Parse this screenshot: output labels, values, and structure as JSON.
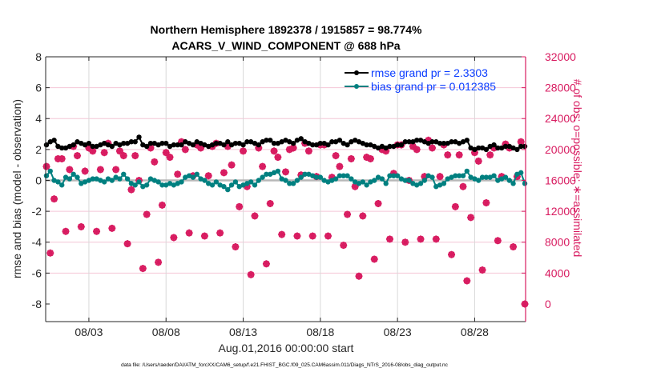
{
  "chart_data": {
    "type": "line",
    "title": [
      "Northern Hemisphere 1892378 / 1915857 = 98.774%",
      "ACARS_V_WIND_COMPONENT @ 688 hPa"
    ],
    "xlabel": "Aug.01,2016 00:00:00 start",
    "ylabel_left": "rmse and bias (model - observation)",
    "ylabel_right": "# of obs: o=possible; ∗=assimilated",
    "footnote": "data file: /Users/raeder/DAI/ATM_forcXX/CAM6_setup/f.e21.FHIST_BGC.f09_025.CAM6assim.011/Diags_NTrS_2016-08/obs_diag_output.nc",
    "x_units": "days since Aug.01,2016 00:00:00",
    "xlim": [
      -0.8,
      30.3
    ],
    "x_start": -0.75,
    "x_step": 0.25,
    "xticks": [
      {
        "value": 2,
        "label": "08/03"
      },
      {
        "value": 7,
        "label": "08/08"
      },
      {
        "value": 12,
        "label": "08/13"
      },
      {
        "value": 17,
        "label": "08/18"
      },
      {
        "value": 22,
        "label": "08/23"
      },
      {
        "value": 27,
        "label": "08/28"
      }
    ],
    "ylim_left": [
      -9.14,
      8
    ],
    "yticks_left": [
      {
        "value": 8,
        "label": "8"
      },
      {
        "value": 6,
        "label": "6"
      },
      {
        "value": 4,
        "label": "4"
      },
      {
        "value": 2,
        "label": "2"
      },
      {
        "value": 0,
        "label": "0"
      },
      {
        "value": -2,
        "label": "-2"
      },
      {
        "value": -4,
        "label": "-4"
      },
      {
        "value": -6,
        "label": "-6"
      },
      {
        "value": -8,
        "label": "-8"
      }
    ],
    "ylim_right": [
      -2280,
      32000
    ],
    "yticks_right": [
      {
        "value": 32000,
        "label": "32000"
      },
      {
        "value": 28000,
        "label": "28000"
      },
      {
        "value": 24000,
        "label": "24000"
      },
      {
        "value": 20000,
        "label": "20000"
      },
      {
        "value": 16000,
        "label": "16000"
      },
      {
        "value": 12000,
        "label": "12000"
      },
      {
        "value": 8000,
        "label": "8000"
      },
      {
        "value": 4000,
        "label": "4000"
      },
      {
        "value": 0,
        "label": "0"
      }
    ],
    "grid": true,
    "legend_position": "top-right",
    "colors": {
      "rmse": "#000000",
      "bias": "#008080",
      "obs": "#d81b60",
      "legend_text": "#0a3cff",
      "grid": "#d9d9d9",
      "right_grid": "#f4c6d6"
    },
    "series": [
      {
        "name": "rmse grand pr = 2.3303",
        "axis": "left",
        "values": [
          2.3,
          2.5,
          2.6,
          2.2,
          2.1,
          2.1,
          2.2,
          2.3,
          2.5,
          2.4,
          2.3,
          2.4,
          2.2,
          2.2,
          2.3,
          2.4,
          2.3,
          2.2,
          2.4,
          2.3,
          2.4,
          2.4,
          2.5,
          2.5,
          2.8,
          2.3,
          2.2,
          2.4,
          2.4,
          2.3,
          2.4,
          2.4,
          2.2,
          2.3,
          2.3,
          2.3,
          2.5,
          2.4,
          2.3,
          2.5,
          2.4,
          2.3,
          2.2,
          2.3,
          2.4,
          2.4,
          2.3,
          2.5,
          2.3,
          2.4,
          2.4,
          2.3,
          2.5,
          2.5,
          2.4,
          2.3,
          2.5,
          2.6,
          2.6,
          2.4,
          2.4,
          2.5,
          2.6,
          2.5,
          2.4,
          2.6,
          2.7,
          2.5,
          2.4,
          2.3,
          2.3,
          2.4,
          2.4,
          2.3,
          2.5,
          2.5,
          2.6,
          2.4,
          2.3,
          2.5,
          2.6,
          2.5,
          2.4,
          2.3,
          2.3,
          2.2,
          2.1,
          2.2,
          2.1,
          2.2,
          2.2,
          2.3,
          2.3,
          2.5,
          2.5,
          2.5,
          2.6,
          2.6,
          2.5,
          2.4,
          2.5,
          2.5,
          2.4,
          2.4,
          2.4,
          2.5,
          2.5,
          2.4,
          2.5,
          2.6,
          2.1,
          2.0,
          2.1,
          2.1,
          2.0,
          2.2,
          2.3,
          2.1,
          2.1,
          2.2,
          2.2,
          2.1,
          2.0,
          2.2,
          2.2
        ]
      },
      {
        "name": "bias grand pr = 0.012385",
        "axis": "left",
        "values": [
          0.3,
          0.6,
          0.0,
          -0.1,
          -0.3,
          0.2,
          0.1,
          0.4,
          0.2,
          -0.2,
          -0.1,
          0.0,
          0.1,
          0.1,
          0.0,
          -0.1,
          0.1,
          0.0,
          0.2,
          0.1,
          0.4,
          0.1,
          -0.2,
          -0.3,
          -0.1,
          -0.4,
          -0.3,
          0.1,
          0.0,
          -0.1,
          -0.3,
          -0.3,
          -0.2,
          -0.3,
          -0.2,
          -0.1,
          0.2,
          0.3,
          0.2,
          0.4,
          0.1,
          0.0,
          -0.2,
          -0.3,
          -0.1,
          -0.3,
          -0.4,
          -0.6,
          -0.3,
          -0.1,
          -0.4,
          -0.3,
          -0.2,
          -0.1,
          -0.3,
          0.0,
          0.2,
          0.4,
          0.4,
          0.5,
          0.6,
          0.1,
          0.0,
          -0.2,
          -0.2,
          0.0,
          0.2,
          0.4,
          0.4,
          0.3,
          0.2,
          0.2,
          0.0,
          -0.1,
          0.0,
          0.1,
          0.3,
          0.3,
          0.3,
          0.1,
          -0.1,
          -0.2,
          -0.1,
          -0.3,
          -0.1,
          0.0,
          0.2,
          0.1,
          -0.2,
          0.3,
          0.3,
          0.3,
          0.1,
          0.0,
          0.0,
          -0.2,
          -0.3,
          -0.2,
          0.0,
          0.3,
          0.2,
          -0.4,
          -0.3,
          -0.2,
          0.1,
          0.2,
          0.3,
          0.3,
          0.3,
          0.6,
          0.2,
          0.1,
          0.0,
          0.2,
          0.2,
          0.2,
          0.3,
          0.0,
          0.1,
          0.2,
          0.0,
          -0.2,
          0.4,
          0.5,
          -0.2
        ]
      },
      {
        "name": "obs possible / assimilated",
        "axis": "right",
        "values": [
          17800,
          6600,
          13600,
          18800,
          18800,
          9400,
          17400,
          20400,
          19200,
          10000,
          17200,
          20200,
          19800,
          9400,
          17400,
          19600,
          20800,
          9800,
          17400,
          19800,
          19200,
          7800,
          14800,
          19200,
          16000,
          4600,
          11600,
          20200,
          18400,
          5400,
          12800,
          19600,
          19000,
          8600,
          16800,
          21000,
          20000,
          9200,
          16600,
          20600,
          20200,
          8800,
          16600,
          20400,
          20800,
          9200,
          17000,
          20400,
          18000,
          7400,
          12600,
          19800,
          15200,
          3800,
          11400,
          20200,
          17800,
          5200,
          13000,
          19800,
          19000,
          9000,
          17100,
          20000,
          20200,
          8800,
          16700,
          20800,
          19800,
          8800,
          16500,
          20600,
          20600,
          8800,
          16400,
          19200,
          17800,
          7600,
          11600,
          18800,
          15200,
          3600,
          11400,
          19000,
          18800,
          5800,
          13000,
          20000,
          19800,
          8400,
          16900,
          20600,
          20600,
          8000,
          16000,
          20400,
          20000,
          8400,
          16500,
          21200,
          20200,
          8400,
          16500,
          20600,
          19300,
          6400,
          12600,
          19300,
          15200,
          3000,
          11200,
          19600,
          18500,
          4400,
          13100,
          19300,
          20200,
          8200,
          16500,
          20700,
          20200,
          7400,
          16500,
          21000,
          0
        ]
      }
    ]
  }
}
